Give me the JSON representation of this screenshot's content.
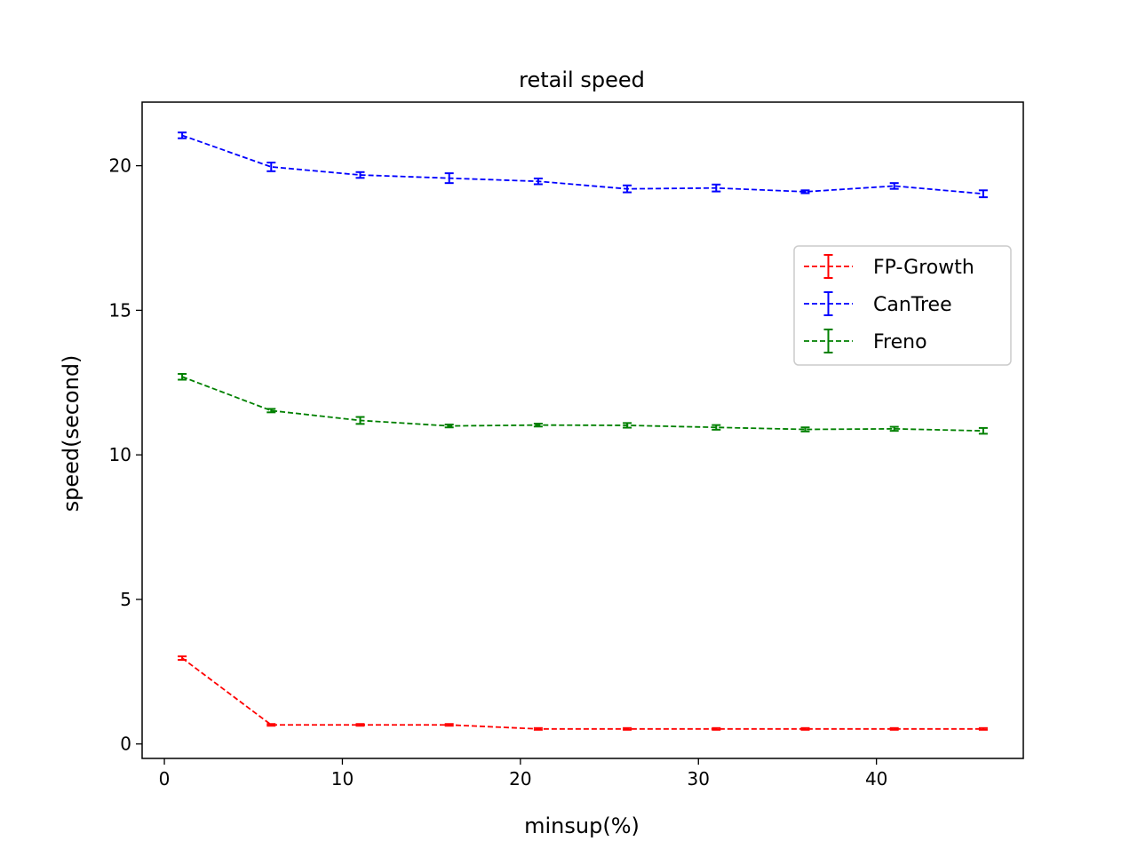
{
  "chart_data": {
    "type": "line",
    "title": "retail speed",
    "xlabel": "minsup(%)",
    "ylabel": "speed(second)",
    "xlim": [
      -1.25,
      48.25
    ],
    "ylim": [
      -0.5,
      22.2
    ],
    "xticks": [
      0,
      10,
      20,
      30,
      40
    ],
    "yticks": [
      0,
      5,
      10,
      15,
      20
    ],
    "x": [
      1,
      6,
      11,
      16,
      21,
      26,
      31,
      36,
      41,
      46
    ],
    "grid": false,
    "legend_position": "center-right",
    "series": [
      {
        "name": "FP-Growth",
        "color": "#ff0000",
        "values": [
          2.97,
          0.66,
          0.66,
          0.66,
          0.52,
          0.52,
          0.52,
          0.52,
          0.52,
          0.52
        ],
        "errors": [
          0.06,
          0.03,
          0.03,
          0.03,
          0.03,
          0.03,
          0.03,
          0.03,
          0.03,
          0.03
        ]
      },
      {
        "name": "CanTree",
        "color": "#0000ff",
        "values": [
          21.05,
          19.96,
          19.68,
          19.57,
          19.46,
          19.2,
          19.23,
          19.1,
          19.3,
          19.03
        ],
        "errors": [
          0.1,
          0.15,
          0.1,
          0.17,
          0.1,
          0.12,
          0.12,
          0.05,
          0.1,
          0.12
        ]
      },
      {
        "name": "Freno",
        "color": "#008000",
        "values": [
          12.7,
          11.53,
          11.19,
          11.0,
          11.03,
          11.02,
          10.95,
          10.88,
          10.9,
          10.83
        ],
        "errors": [
          0.1,
          0.06,
          0.12,
          0.05,
          0.05,
          0.08,
          0.08,
          0.07,
          0.07,
          0.1
        ]
      }
    ]
  }
}
